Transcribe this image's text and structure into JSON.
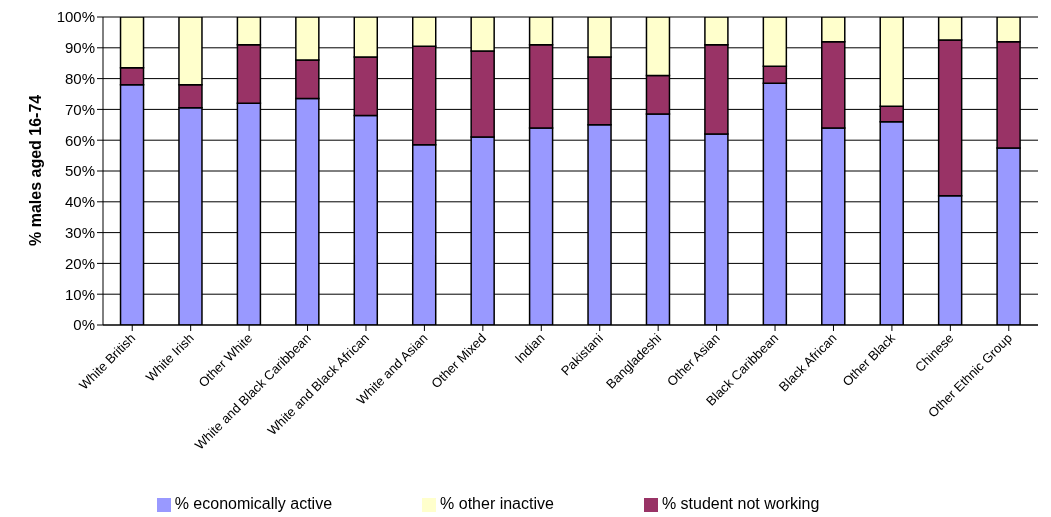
{
  "chart_data": {
    "type": "bar",
    "stacked": true,
    "ylabel": "% males aged 16-74",
    "categories": [
      "White British",
      "White Irish",
      "Other White",
      "White and Black Caribbean",
      "White and Black African",
      "White and Asian",
      "Other Mixed",
      "Indian",
      "Pakistani",
      "Bangladeshi",
      "Other Asian",
      "Black Caribbean",
      "Black African",
      "Other Black",
      "Chinese",
      "Other Ethnic Group"
    ],
    "series": [
      {
        "name": "% economically active",
        "color": "#9999ff",
        "values": [
          78,
          70.5,
          72,
          73.5,
          68,
          58.5,
          61,
          64,
          65,
          68.5,
          62,
          78.5,
          64,
          66,
          42,
          57.5
        ]
      },
      {
        "name": "% student not working",
        "color": "#993366",
        "values": [
          5.5,
          7.5,
          19,
          12.5,
          19,
          32,
          28,
          27,
          22,
          12.5,
          29,
          5.5,
          28,
          5,
          50.5,
          34.5
        ]
      },
      {
        "name": "% other inactive",
        "color": "#ffffcc",
        "values": [
          16.5,
          22,
          9,
          14,
          13,
          9.5,
          11,
          9,
          13,
          19,
          9,
          16,
          8,
          29,
          7.5,
          8
        ]
      }
    ],
    "ylim": [
      0,
      100
    ],
    "yticks": [
      {
        "value": 0,
        "label": "0%"
      },
      {
        "value": 10,
        "label": "10%"
      },
      {
        "value": 20,
        "label": "20%"
      },
      {
        "value": 30,
        "label": "30%"
      },
      {
        "value": 40,
        "label": "40%"
      },
      {
        "value": 50,
        "label": "50%"
      },
      {
        "value": 60,
        "label": "60%"
      },
      {
        "value": 70,
        "label": "70%"
      },
      {
        "value": 80,
        "label": "80%"
      },
      {
        "value": 90,
        "label": "90%"
      },
      {
        "value": 100,
        "label": "100%"
      }
    ],
    "grid": "y",
    "legend": "bottom"
  }
}
